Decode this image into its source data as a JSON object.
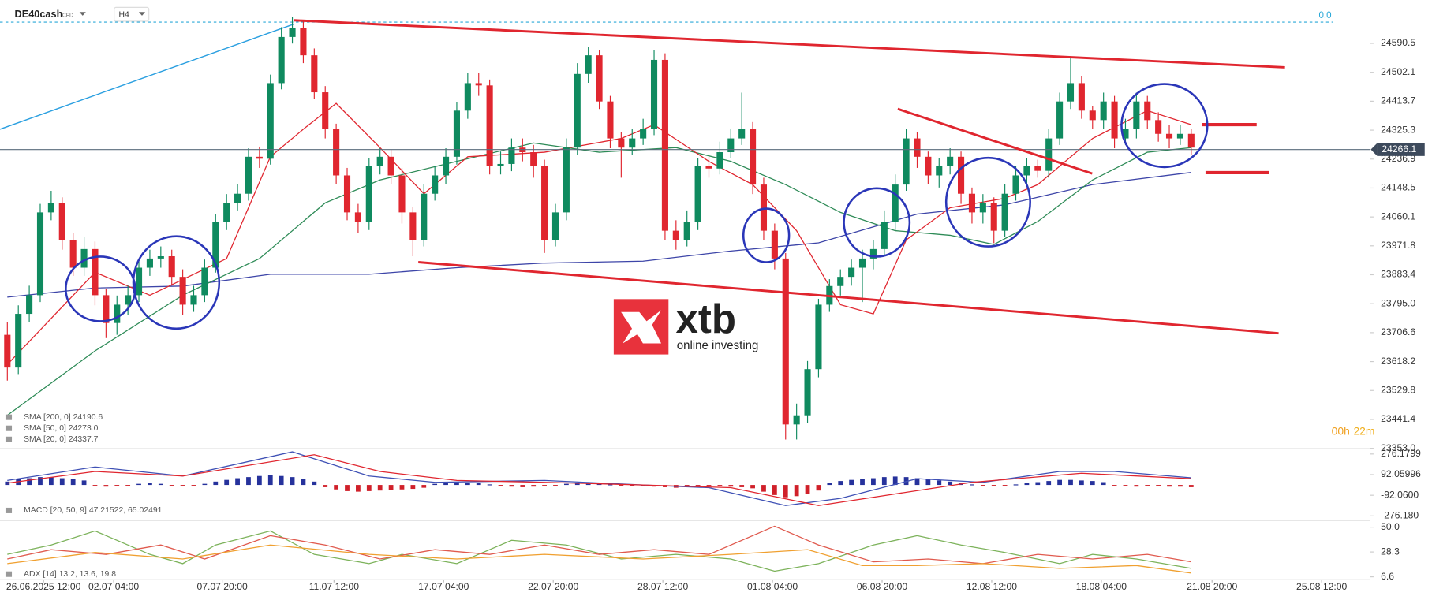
{
  "chart_data": [
    {
      "type": "candlestick",
      "title": "DE40cash",
      "subtitle": "CFD",
      "timeframe": "H4",
      "level_label": "0.0",
      "timer": [
        "00h",
        "22m"
      ],
      "watermark": {
        "brand": "xtb",
        "tagline": "online investing"
      },
      "up_color": "#0f8a5f",
      "down_color": "#e0262f",
      "grid": false,
      "xlim": [
        -0.67,
        124.3
      ],
      "xticks": [
        {
          "value": 3.3,
          "label": "26.06.2025 12:00"
        },
        {
          "value": 9.7,
          "label": "02.07 04:00"
        },
        {
          "value": 19.6,
          "label": "07.07 20:00"
        },
        {
          "value": 29.8,
          "label": "11.07 12:00"
        },
        {
          "value": 39.8,
          "label": "17.07 04:00"
        },
        {
          "value": 49.8,
          "label": "22.07 20:00"
        },
        {
          "value": 59.8,
          "label": "28.07 12:00"
        },
        {
          "value": 69.8,
          "label": "01.08 04:00"
        },
        {
          "value": 79.8,
          "label": "06.08 20:00"
        },
        {
          "value": 89.8,
          "label": "12.08 12:00"
        },
        {
          "value": 99.8,
          "label": "18.08 04:00"
        },
        {
          "value": 109.9,
          "label": "21.08 20:00"
        },
        {
          "value": 119.9,
          "label": "25.08 12:00"
        }
      ],
      "ylim": [
        23355,
        24723
      ],
      "yticks": [
        24590.5,
        24502.1,
        24413.7,
        24325.3,
        24236.9,
        24148.5,
        24060.1,
        23971.8,
        23883.4,
        {
          "value": 23795,
          "label": "23795.0"
        },
        23706.6,
        23618.2,
        23529.8,
        23441.4,
        {
          "value": 23353,
          "label": "23353.0"
        }
      ],
      "last_price": 24266.1,
      "open": [
        23700,
        23600,
        23764,
        23821,
        24074,
        24103,
        23990,
        23905,
        23962,
        23821,
        23736,
        23792,
        23821,
        23905,
        23933,
        23940,
        23877,
        23792,
        23821,
        23905,
        24046,
        24103,
        24131,
        24244,
        24238,
        24469,
        24610,
        24638,
        24554,
        24441,
        24328,
        24187,
        24074,
        24046,
        24215,
        24244,
        24187,
        24074,
        23990,
        24131,
        24187,
        24244,
        24385,
        24469,
        24462,
        24215,
        24222,
        24272,
        24258,
        24215,
        23990,
        24074,
        24272,
        24497,
        24554,
        24413,
        24300,
        24272,
        24300,
        24328,
        24540,
        24018,
        23990,
        24046,
        24215,
        24208,
        24258,
        24300,
        24328,
        24159,
        24018,
        23933,
        23426,
        23454,
        23595,
        23792,
        23849,
        23877,
        23905,
        23933,
        23962,
        24046,
        24159,
        24300,
        24244,
        24187,
        24215,
        24244,
        24131,
        24074,
        24103,
        24018,
        24131,
        24187,
        24215,
        24201,
        24300,
        24413,
        24469,
        24385,
        24356,
        24413,
        24300,
        24328,
        24413,
        24356,
        24314,
        24300,
        24314
      ],
      "high": [
        23740,
        23790,
        23850,
        24100,
        24140,
        24120,
        24010,
        24000,
        23985,
        23840,
        23820,
        23850,
        23930,
        23960,
        23970,
        23960,
        23900,
        23850,
        23930,
        24070,
        24130,
        24160,
        24270,
        24275,
        24495,
        24640,
        24670,
        24660,
        24575,
        24460,
        24345,
        24210,
        24100,
        24240,
        24270,
        24265,
        24210,
        24090,
        24160,
        24215,
        24270,
        24410,
        24500,
        24500,
        24480,
        24260,
        24300,
        24300,
        24280,
        24235,
        24100,
        24300,
        24530,
        24580,
        24570,
        24430,
        24320,
        24330,
        24360,
        24570,
        24560,
        24050,
        24080,
        24240,
        24245,
        24290,
        24330,
        24440,
        24350,
        24180,
        24040,
        23950,
        23490,
        23620,
        23810,
        23870,
        23900,
        23930,
        23960,
        23990,
        24080,
        24190,
        24330,
        24320,
        24260,
        24240,
        24270,
        24260,
        24150,
        24130,
        24120,
        24160,
        24215,
        24240,
        24235,
        24330,
        24440,
        24545,
        24490,
        24400,
        24440,
        24430,
        24360,
        24440,
        24430,
        24380,
        24340,
        24340,
        24330
      ],
      "low": [
        23560,
        23580,
        23740,
        23800,
        24050,
        23960,
        23880,
        23880,
        23790,
        23690,
        23700,
        23760,
        23800,
        23880,
        23905,
        23850,
        23760,
        23770,
        23800,
        23890,
        24020,
        24080,
        24110,
        24210,
        24220,
        24450,
        24590,
        24530,
        24420,
        24300,
        24160,
        24050,
        24010,
        24020,
        24190,
        24160,
        24040,
        23940,
        23970,
        24110,
        24160,
        24220,
        24360,
        24430,
        24190,
        24190,
        24200,
        24230,
        24180,
        23950,
        23970,
        24050,
        24250,
        24470,
        24390,
        24270,
        24180,
        24250,
        24280,
        24310,
        23990,
        23960,
        23970,
        24020,
        24180,
        24190,
        24240,
        24280,
        24130,
        23990,
        23900,
        23380,
        23380,
        23430,
        23570,
        23770,
        23820,
        23850,
        23800,
        23900,
        23940,
        24020,
        24140,
        24210,
        24160,
        24150,
        24190,
        24100,
        24040,
        24040,
        23980,
        24000,
        24110,
        24160,
        24180,
        24180,
        24280,
        24390,
        24360,
        24330,
        24330,
        24270,
        24280,
        24300,
        24330,
        24290,
        24270,
        24280,
        24250
      ],
      "close": [
        23600,
        23764,
        23821,
        24074,
        24103,
        23990,
        23905,
        23962,
        23821,
        23736,
        23792,
        23821,
        23905,
        23933,
        23940,
        23877,
        23792,
        23821,
        23905,
        24046,
        24103,
        24131,
        24244,
        24238,
        24469,
        24610,
        24638,
        24554,
        24441,
        24328,
        24187,
        24074,
        24046,
        24215,
        24244,
        24187,
        24074,
        23990,
        24131,
        24187,
        24244,
        24385,
        24469,
        24462,
        24215,
        24222,
        24272,
        24258,
        24215,
        23990,
        24074,
        24272,
        24497,
        24554,
        24413,
        24300,
        24272,
        24300,
        24328,
        24540,
        24018,
        23990,
        24046,
        24215,
        24208,
        24258,
        24300,
        24328,
        24159,
        24018,
        23933,
        23426,
        23454,
        23595,
        23792,
        23849,
        23877,
        23905,
        23933,
        23962,
        24046,
        24159,
        24300,
        24244,
        24187,
        24215,
        24244,
        24131,
        24074,
        24103,
        24018,
        24131,
        24187,
        24215,
        24201,
        24300,
        24413,
        24469,
        24385,
        24356,
        24413,
        24300,
        24328,
        24413,
        24356,
        24314,
        24300,
        24314,
        24272
      ],
      "series": [
        {
          "name": "SMA [200, 0] 24190.6",
          "color": "#3d45a8",
          "x": [
            0,
            8,
            16,
            24,
            33,
            41,
            49,
            58,
            66,
            74,
            83,
            91,
            99,
            108
          ],
          "values": [
            23815,
            23843,
            23849,
            23885,
            23885,
            23905,
            23919,
            23925,
            23956,
            23981,
            24069,
            24097,
            24159,
            24196
          ]
        },
        {
          "name": "SMA [50, 0] 24273.0",
          "color": "#2e8b57",
          "x": [
            0,
            8,
            16,
            23,
            29,
            34,
            41,
            48,
            54,
            61,
            66,
            71,
            76,
            81,
            86,
            90,
            94,
            99,
            104,
            108
          ],
          "values": [
            23454,
            23651,
            23821,
            23933,
            24103,
            24173,
            24230,
            24286,
            24258,
            24272,
            24230,
            24159,
            24074,
            24018,
            24004,
            23976,
            24046,
            24173,
            24258,
            24272
          ]
        },
        {
          "name": "SMA [20, 0] 24337.7",
          "color": "#e0262f",
          "x": [
            0,
            8,
            13,
            20,
            24,
            27,
            30,
            34,
            38,
            42,
            49,
            56,
            59,
            64,
            68,
            72,
            76,
            79,
            82,
            86,
            91,
            94,
            99,
            104,
            108
          ],
          "values": [
            23609,
            23891,
            23821,
            23933,
            24244,
            24328,
            24407,
            24272,
            24131,
            24244,
            24258,
            24300,
            24342,
            24230,
            24159,
            24018,
            23792,
            23764,
            23990,
            24088,
            24117,
            24159,
            24300,
            24385,
            24342
          ]
        }
      ]
    },
    {
      "type": "macd",
      "legend": "MACD [20, 50, 9] 47.21522, 65.02491",
      "pos_color": "#26329c",
      "neg_color": "#d0202a",
      "grid": false,
      "ylim": [
        -310,
        316
      ],
      "yticks": [
        276.1799,
        92.05996,
        {
          "value": -92.06,
          "label": "-92.0600"
        },
        {
          "value": -276.18,
          "label": "-276.180"
        }
      ],
      "histogram": [
        30,
        50,
        60,
        70,
        70,
        60,
        50,
        40,
        -10,
        -15,
        -10,
        -5,
        10,
        15,
        10,
        -5,
        -10,
        -5,
        10,
        30,
        45,
        60,
        70,
        80,
        85,
        80,
        70,
        50,
        30,
        -20,
        -40,
        -55,
        -60,
        -55,
        -50,
        -45,
        -40,
        -35,
        -25,
        10,
        20,
        25,
        20,
        15,
        5,
        -10,
        -15,
        -20,
        -15,
        -10,
        -5,
        10,
        15,
        15,
        10,
        5,
        -5,
        -10,
        -10,
        -15,
        -20,
        -25,
        -20,
        -15,
        -10,
        -10,
        -15,
        -20,
        -30,
        -60,
        -90,
        -110,
        -100,
        -80,
        -50,
        20,
        35,
        45,
        55,
        60,
        70,
        75,
        70,
        60,
        50,
        40,
        30,
        15,
        5,
        -5,
        -10,
        -5,
        5,
        15,
        25,
        35,
        45,
        45,
        40,
        35,
        25,
        -5,
        -10,
        -15,
        -10,
        -10,
        -15,
        -15,
        -20
      ],
      "series": [
        {
          "color": "#3f51b5",
          "x": [
            0,
            8,
            16,
            26,
            33,
            39,
            49,
            58,
            64,
            71,
            76,
            83,
            89,
            96,
            101,
            108
          ],
          "values": [
            40,
            160,
            80,
            295,
            80,
            24,
            40,
            0,
            -24,
            -184,
            -120,
            56,
            24,
            120,
            120,
            64
          ]
        },
        {
          "color": "#e0262f",
          "x": [
            0,
            8,
            16,
            28,
            34,
            41,
            49,
            58,
            66,
            74,
            81,
            88,
            98,
            108
          ],
          "values": [
            16,
            120,
            80,
            270,
            120,
            40,
            24,
            0,
            -24,
            -184,
            -80,
            24,
            104,
            56
          ]
        }
      ]
    },
    {
      "type": "line",
      "legend": "ADX [14] 13.2, 13.6, 19.8",
      "grid": false,
      "ylim": [
        4.1,
        54.9
      ],
      "yticks": [
        {
          "value": 50,
          "label": "50.0"
        },
        28.3,
        6.6
      ],
      "series": [
        {
          "color": "#7cb25a",
          "x": [
            0,
            4,
            8,
            13,
            16,
            19,
            24,
            28,
            33,
            36,
            41,
            46,
            51,
            56,
            61,
            66,
            70,
            74,
            79,
            83,
            87,
            91,
            96,
            99,
            103,
            108
          ],
          "values": [
            26.2,
            34.4,
            46.7,
            26.2,
            18.1,
            34.4,
            46.7,
            26.2,
            18.1,
            26.2,
            18.1,
            38.5,
            34.4,
            22.2,
            26.2,
            22.2,
            11.5,
            18.1,
            34.4,
            42.6,
            34.4,
            27.9,
            18.1,
            26.2,
            22.2,
            14.0
          ]
        },
        {
          "color": "#e05a4e",
          "x": [
            0,
            4,
            9,
            14,
            18,
            24,
            29,
            34,
            39,
            44,
            49,
            54,
            59,
            64,
            70,
            74,
            79,
            84,
            89,
            94,
            99,
            104,
            108
          ],
          "values": [
            22.2,
            30.3,
            26.2,
            34.4,
            22.2,
            42.6,
            34.4,
            22.2,
            30.3,
            26.2,
            34.4,
            26.2,
            30.3,
            26.2,
            50.8,
            34.4,
            19.7,
            22.2,
            18.1,
            26.2,
            22.2,
            26.2,
            19.7
          ]
        },
        {
          "color": "#f0a030",
          "x": [
            0,
            8,
            16,
            24,
            33,
            41,
            49,
            58,
            66,
            73,
            78,
            83,
            89,
            96,
            103,
            108
          ],
          "values": [
            18.1,
            27.9,
            22.2,
            34.4,
            26.2,
            22.2,
            26.2,
            22.2,
            26.2,
            30.3,
            16.4,
            16.4,
            18.1,
            14.0,
            16.4,
            9.9
          ]
        }
      ]
    }
  ]
}
